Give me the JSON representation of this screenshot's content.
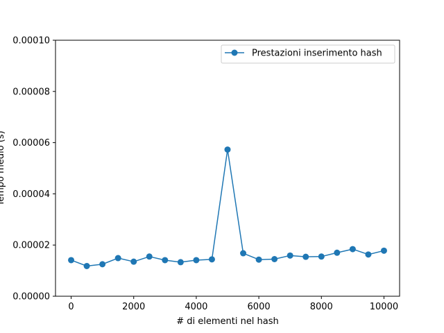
{
  "chart_data": {
    "type": "line",
    "title": "",
    "xlabel": "# di elementi nel hash",
    "ylabel": "Tempo medio (s)",
    "xlim": [
      -500,
      10500
    ],
    "ylim": [
      0,
      0.0001
    ],
    "x_ticks": [
      0,
      2000,
      4000,
      6000,
      8000,
      10000
    ],
    "x_tick_labels": [
      "0",
      "2000",
      "4000",
      "6000",
      "8000",
      "10000"
    ],
    "y_ticks": [
      0,
      2e-05,
      4e-05,
      6e-05,
      8e-05,
      0.0001
    ],
    "y_tick_labels": [
      "0.00000",
      "0.00002",
      "0.00004",
      "0.00006",
      "0.00008",
      "0.00010"
    ],
    "grid": false,
    "legend_position": "top-right",
    "series": [
      {
        "name": "Prestazioni inserimento hash",
        "color": "#1f77b4",
        "marker": "circle",
        "x": [
          0,
          500,
          1000,
          1500,
          2000,
          2500,
          3000,
          3500,
          4000,
          4500,
          5000,
          5500,
          6000,
          6500,
          7000,
          7500,
          8000,
          8500,
          9000,
          9500,
          10000
        ],
        "y": [
          1.41e-05,
          1.18e-05,
          1.25e-05,
          1.49e-05,
          1.35e-05,
          1.55e-05,
          1.41e-05,
          1.33e-05,
          1.41e-05,
          1.44e-05,
          5.73e-05,
          1.68e-05,
          1.43e-05,
          1.45e-05,
          1.59e-05,
          1.54e-05,
          1.55e-05,
          1.7e-05,
          1.84e-05,
          1.63e-05,
          1.78e-05
        ]
      }
    ]
  }
}
